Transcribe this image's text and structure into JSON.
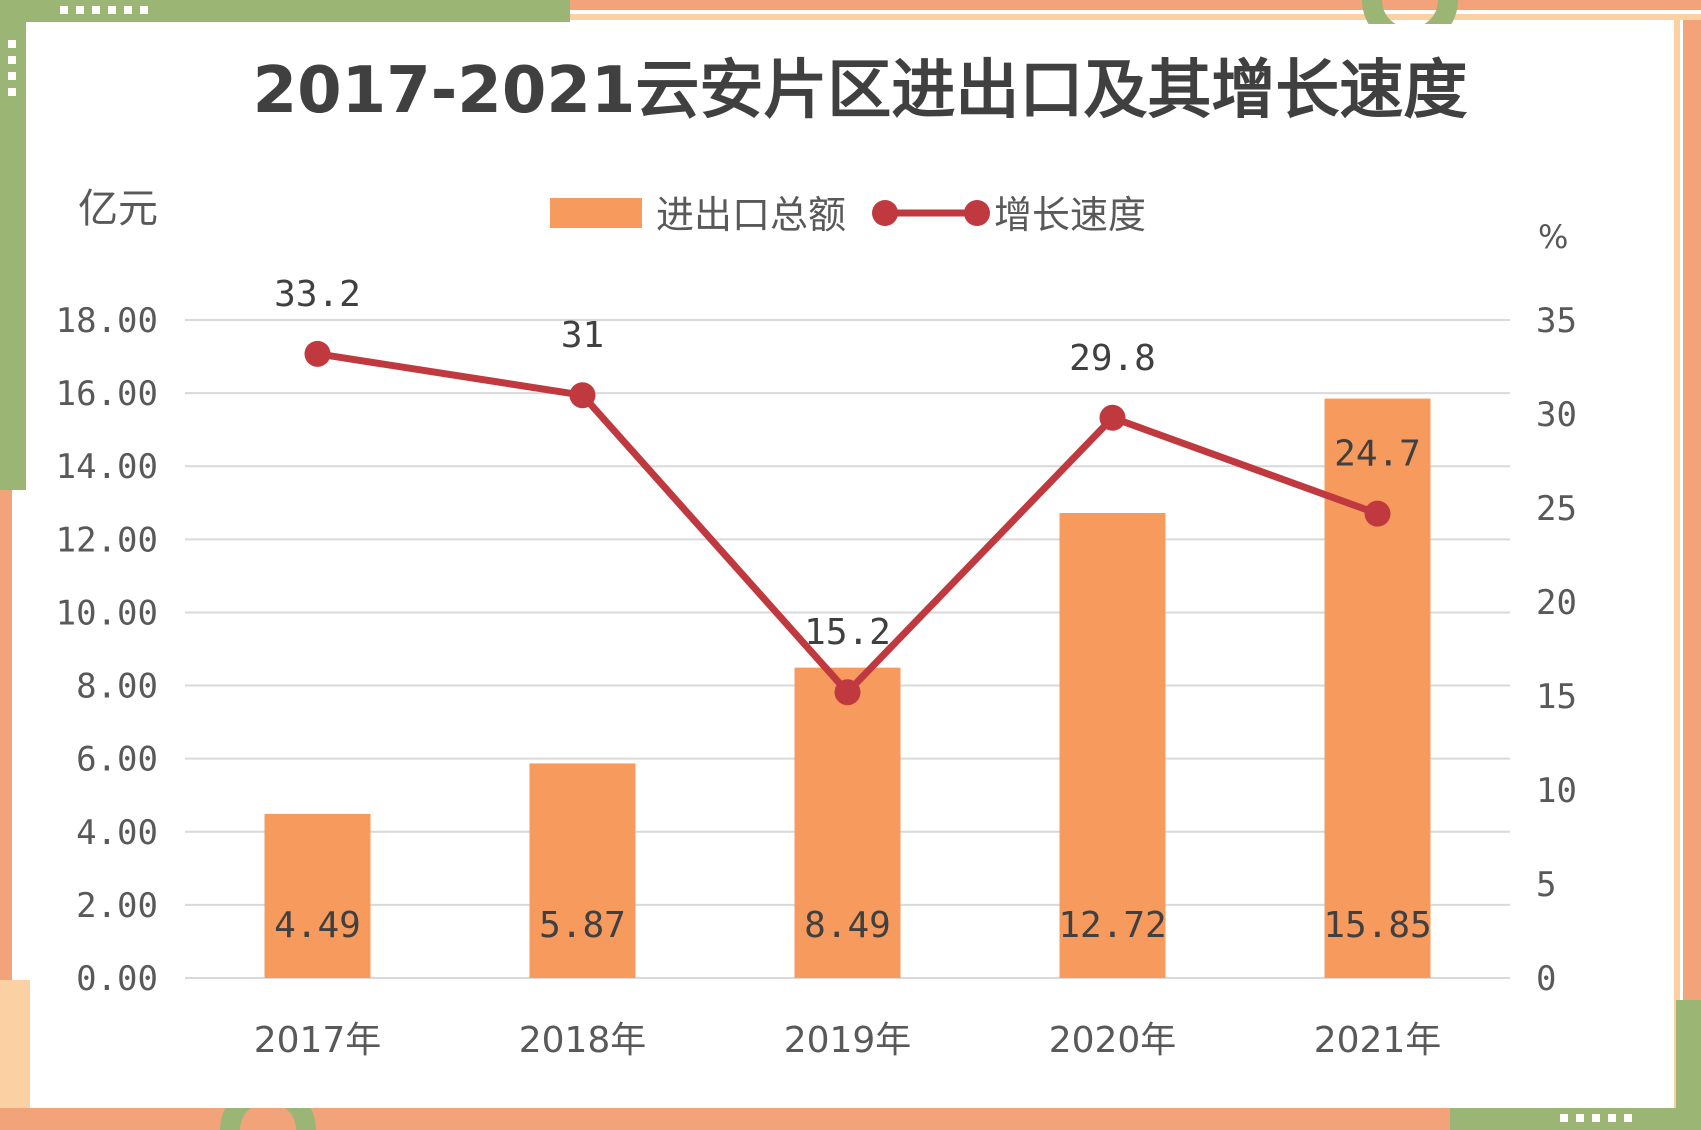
{
  "chart_data": {
    "type": "bar",
    "title": "2017-2021云安片区进出口及其增长速度",
    "categories": [
      "2017年",
      "2018年",
      "2019年",
      "2020年",
      "2021年"
    ],
    "series": [
      {
        "name": "进出口总额",
        "type": "bar",
        "axis": "left",
        "values": [
          4.49,
          5.87,
          8.49,
          12.72,
          15.85
        ],
        "color": "#f79a5e"
      },
      {
        "name": "增长速度",
        "type": "line",
        "axis": "right",
        "values": [
          33.2,
          31,
          15.2,
          29.8,
          24.7
        ],
        "color": "#c0393f"
      }
    ],
    "bar_labels": [
      "4.49",
      "5.87",
      "8.49",
      "12.72",
      "15.85"
    ],
    "line_labels": [
      "33.2",
      "31",
      "15.2",
      "29.8",
      "24.7"
    ],
    "left_axis": {
      "unit": "亿元",
      "ylim": [
        0,
        18
      ],
      "ticks": [
        "18.00",
        "16.00",
        "14.00",
        "12.00",
        "10.00",
        "8.00",
        "6.00",
        "4.00",
        "2.00",
        "0.00"
      ]
    },
    "right_axis": {
      "unit": "%",
      "ylim": [
        0,
        35
      ],
      "ticks": [
        "35",
        "30",
        "25",
        "20",
        "15",
        "10",
        "5",
        "0"
      ]
    },
    "legend_position": "top-center",
    "grid": true
  },
  "colors": {
    "frame_green": "#9ab574",
    "frame_orange": "#f2a37a",
    "frame_peach": "#fbd1a4"
  }
}
